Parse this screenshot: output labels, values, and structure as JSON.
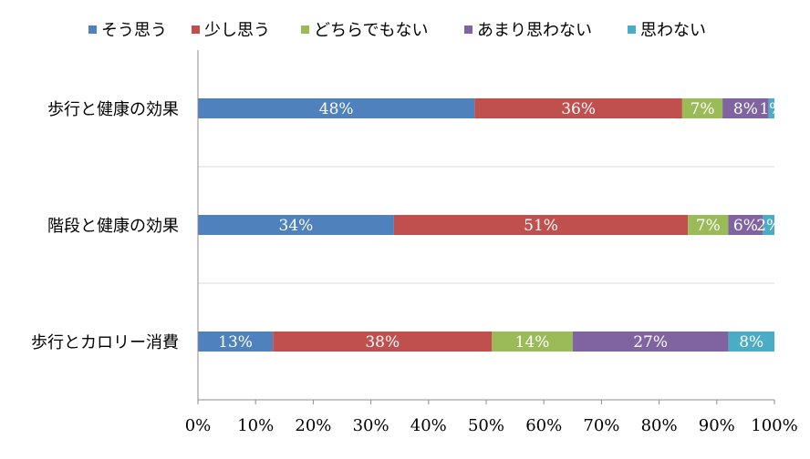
{
  "chart_data": {
    "type": "bar",
    "orientation": "horizontal",
    "stacked": "percent",
    "categories": [
      "歩行と健康の効果",
      "階段と健康の効果",
      "歩行とカロリー消費"
    ],
    "series": [
      {
        "name": "そう思う",
        "color": "#4F81BD",
        "values": [
          48,
          34,
          13
        ],
        "labels": [
          "48%",
          "34%",
          "13%"
        ]
      },
      {
        "name": "少し思う",
        "color": "#C0504D",
        "values": [
          36,
          51,
          38
        ],
        "labels": [
          "36%",
          "51%",
          "38%"
        ]
      },
      {
        "name": "どちらでもない",
        "color": "#9BBB59",
        "values": [
          7,
          7,
          14
        ],
        "labels": [
          "7%",
          "7%",
          "14%"
        ]
      },
      {
        "name": "あまり思わない",
        "color": "#8064A2",
        "values": [
          8,
          6,
          27
        ],
        "labels": [
          "8%",
          "6%",
          "27%"
        ]
      },
      {
        "name": "思わない",
        "color": "#4BACC6",
        "values": [
          1,
          2,
          8
        ],
        "labels": [
          "1%",
          "2%",
          "8%"
        ]
      }
    ],
    "xlim": [
      0,
      100
    ],
    "x_ticks": [
      "0%",
      "10%",
      "20%",
      "30%",
      "40%",
      "50%",
      "60%",
      "70%",
      "80%",
      "90%",
      "100%"
    ],
    "legend_position": "top",
    "grid": true,
    "title": "",
    "xlabel": "",
    "ylabel": ""
  }
}
